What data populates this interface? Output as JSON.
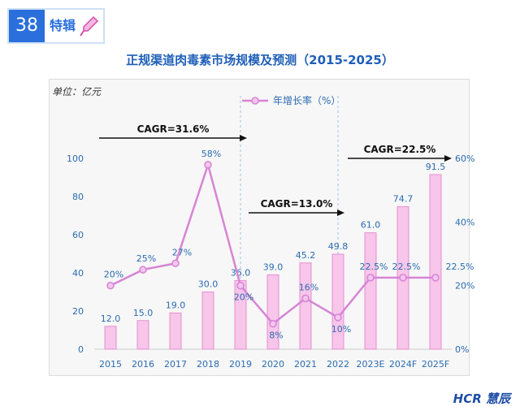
{
  "badge": {
    "number": "38",
    "label": "特辑",
    "icon": "pipette-icon"
  },
  "logo": "HCR 慧辰",
  "chart_data": {
    "type": "bar+line",
    "title": "正规渠道肉毒素市场规模及预测（2015-2025）",
    "unit": "单位：亿元",
    "categories": [
      "2015",
      "2016",
      "2017",
      "2018",
      "2019",
      "2020",
      "2021",
      "2022",
      "2023E",
      "2024F",
      "2025F"
    ],
    "bars": [
      12.0,
      15.0,
      19.0,
      30.0,
      36.0,
      39.0,
      45.2,
      49.8,
      61.0,
      74.7,
      91.5
    ],
    "bar_labels": [
      "12.0",
      "15.0",
      "19.0",
      "30.0",
      "36.0",
      "39.0",
      "45.2",
      "49.8",
      "61.0",
      "74.7",
      "91.5"
    ],
    "growth": [
      20,
      25,
      27,
      58,
      20,
      8,
      16,
      10,
      22.5,
      22.5,
      22.5
    ],
    "growth_labels": [
      "20%",
      "25%",
      "27%",
      "58%",
      "20%",
      "8%",
      "16%",
      "10%",
      "22.5%",
      "22.5%",
      "22.5%"
    ],
    "legend": "年增长率（%）",
    "y_left_ticks": [
      "0",
      "20",
      "40",
      "60",
      "80",
      "100"
    ],
    "y_right_ticks": [
      "0%",
      "20%",
      "40%",
      "60%"
    ],
    "ylim_left": [
      0,
      100
    ],
    "ylim_right": [
      0,
      60
    ],
    "cagr": [
      {
        "label": "CAGR=31.6%",
        "from": "2015",
        "to": "2019"
      },
      {
        "label": "CAGR=13.0%",
        "from": "2020",
        "to": "2022"
      },
      {
        "label": "CAGR=22.5%",
        "from": "2023E",
        "to": "2025F"
      }
    ],
    "colors": {
      "bar": "#f7c6ea",
      "bar_edge": "#e58fd0",
      "line": "#d784d6",
      "text": "#2b6cb0",
      "arrow": "#111111"
    }
  }
}
